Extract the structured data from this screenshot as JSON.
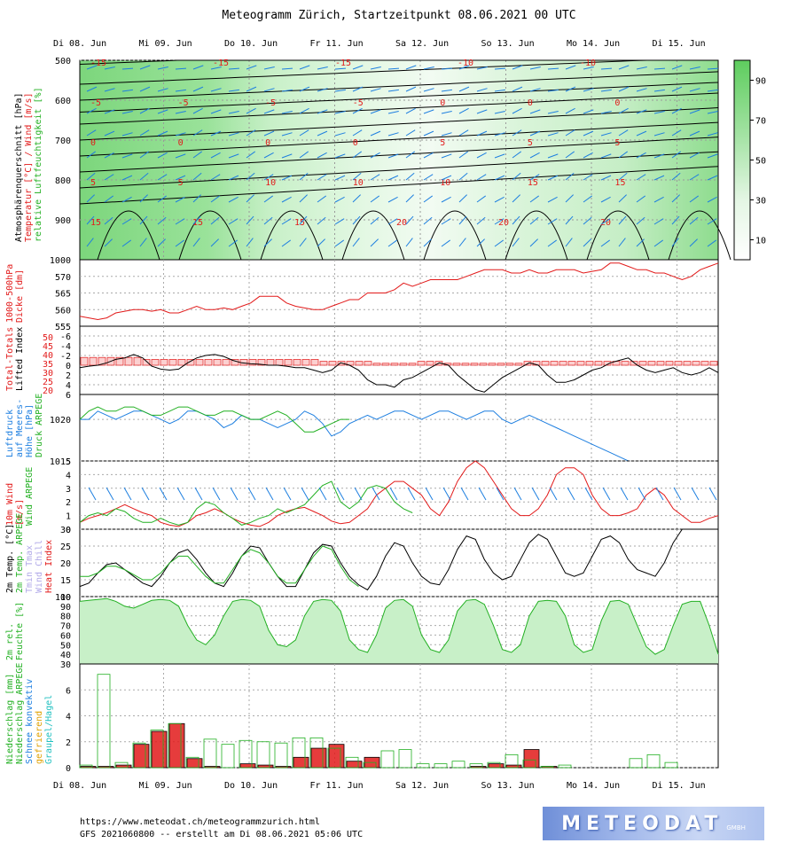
{
  "title": "Meteogramm Zürich, Startzeitpunkt 08.06.2021 00 UTC",
  "footer": {
    "url": "https://www.meteodat.ch/meteogrammzurich.html",
    "run": "GFS 2021060800 -- erstellt am Di 08.06.2021 05:06 UTC"
  },
  "logo": {
    "text": "METEODAT",
    "sub": "GMBH"
  },
  "colors": {
    "red": "#e21a1a",
    "blue": "#1e7fe0",
    "green": "#22b022",
    "black": "#000000",
    "lightgreen": "#c8f0c8",
    "pink": "#e8a0a0",
    "orange": "#e0a000",
    "cyan": "#20c0c0",
    "lilac": "#b0a8e8"
  },
  "chart_data": {
    "type": "line",
    "x_ticks": [
      "Di 08. Jun",
      "Mi 09. Jun",
      "Do 10. Jun",
      "Fr 11. Jun",
      "Sa 12. Jun",
      "So 13. Jun",
      "Mo 14. Jun",
      "Di 15. Jun"
    ],
    "panels": [
      {
        "id": "cross-section",
        "type": "heatmap",
        "ylabel": [
          "Atmosphärenquerschnitt [hPa]",
          "Temperatur [°C] / Wind [m/s]",
          "relative Luftfeuchtigkeit [%]"
        ],
        "ylim": [
          1000,
          500
        ],
        "y_ticks": [
          "500",
          "600",
          "700",
          "800",
          "900",
          "1000"
        ],
        "colorbar_ticks": [
          "90",
          "70",
          "50",
          "30",
          "10"
        ],
        "temperature_labels_hPa": {
          "500": [
            "-15",
            "-15",
            "-15",
            "-10",
            "-10"
          ],
          "600": [
            "-5",
            "-5",
            "-5",
            "-5",
            "0",
            "0",
            "0"
          ],
          "700": [
            "0",
            "0",
            "0",
            "0",
            "5",
            "5",
            "5"
          ],
          "800": [
            "5",
            "5",
            "10",
            "10",
            "10",
            "15",
            "15"
          ],
          "900": [
            "15",
            "15",
            "15",
            "20",
            "20",
            "20"
          ]
        }
      },
      {
        "id": "thickness",
        "ylabel": [
          "1000-500hPa",
          "Dicke [dm]"
        ],
        "ylim": [
          555,
          575
        ],
        "y_ticks": [
          "570",
          "565",
          "560",
          "555"
        ],
        "series": [
          {
            "color": "red",
            "values": [
              558,
              557.5,
              557,
              557.5,
              559,
              559.5,
              560,
              560,
              559.5,
              560,
              559,
              559,
              560,
              561,
              560,
              560,
              560.5,
              560,
              561,
              562,
              564,
              564,
              564,
              562,
              561,
              560.5,
              560,
              560,
              561,
              562,
              563,
              563,
              565,
              565,
              565,
              566,
              568,
              567,
              568,
              569,
              569,
              569,
              569,
              570,
              571,
              572,
              572,
              572,
              571,
              571,
              572,
              571,
              571,
              572,
              572,
              572,
              571,
              571.5,
              572,
              574,
              574,
              573,
              572,
              572,
              571,
              571,
              570,
              569,
              570,
              572,
              573,
              574
            ]
          }
        ]
      },
      {
        "id": "stability",
        "ylabel": [
          "Total-Totals",
          "Lifted Index"
        ],
        "ylim": [
          6,
          -8
        ],
        "y_ticks": [
          "-6",
          "-4",
          "-2",
          "0",
          "2",
          "4",
          "6"
        ],
        "tt_ticks": [
          "50",
          "45",
          "40",
          "35",
          "30",
          "25",
          "20"
        ],
        "series": [
          {
            "name": "Lifted Index",
            "color": "black",
            "values": [
              0.5,
              0.2,
              0,
              -0.5,
              -1.2,
              -1.5,
              -2.2,
              -1.5,
              0.2,
              0.8,
              1,
              0.8,
              -0.5,
              -1.5,
              -2,
              -2.2,
              -1.8,
              -1,
              -0.5,
              -0.3,
              -0.2,
              0,
              0,
              0.2,
              0.5,
              0.5,
              1,
              1.5,
              1,
              -0.5,
              0,
              1,
              3,
              4,
              4,
              4.5,
              3,
              2.5,
              1.5,
              0.5,
              -0.5,
              0,
              2,
              3.5,
              5,
              5.5,
              4,
              2.5,
              1.5,
              0.5,
              -0.5,
              0,
              2,
              3.5,
              3.5,
              3,
              2,
              1,
              0.5,
              -0.5,
              -1,
              -1.5,
              0,
              1,
              1.5,
              1,
              0.5,
              1.5,
              2,
              1.5,
              0.5,
              1.5
            ]
          },
          {
            "name": "Total-Totals",
            "color": "pink",
            "values": [
              44,
              44,
              44,
              44,
              44,
              44,
              44,
              43,
              43,
              43,
              43,
              43,
              43,
              43,
              43,
              43,
              43,
              43,
              43,
              43,
              43,
              43,
              43,
              43,
              43,
              43,
              43,
              42,
              42,
              42,
              42,
              42,
              42,
              41,
              41,
              41,
              41,
              41,
              42,
              42,
              42,
              41,
              41,
              41,
              41,
              41,
              41,
              41,
              41,
              41,
              42,
              42,
              42,
              42,
              42,
              42,
              42,
              42,
              42,
              42,
              42,
              42,
              42,
              42,
              42,
              42,
              42,
              42,
              42,
              42,
              42,
              42
            ]
          }
        ]
      },
      {
        "id": "pressure",
        "ylabel": [
          "Luftdruck",
          "auf Meeres-",
          "Höhe [hPa]",
          "Druck ARPEGE"
        ],
        "ylim": [
          1015,
          1023
        ],
        "y_ticks": [
          "1020",
          "1015"
        ],
        "series": [
          {
            "name": "GFS",
            "color": "blue",
            "values": [
              1020,
              1020,
              1021,
              1020.5,
              1020,
              1020.5,
              1021,
              1021,
              1020.5,
              1020,
              1019.5,
              1020,
              1021,
              1021,
              1020.5,
              1020,
              1019,
              1019.5,
              1020.5,
              1020,
              1020,
              1019.5,
              1019,
              1019.5,
              1020,
              1021,
              1020.5,
              1019.5,
              1018,
              1018.5,
              1019.5,
              1020,
              1020.5,
              1020,
              1020.5,
              1021,
              1021,
              1020.5,
              1020,
              1020.5,
              1021,
              1021,
              1020.5,
              1020,
              1020.5,
              1021,
              1021,
              1020,
              1019.5,
              1020,
              1020.5,
              1020,
              1019.5,
              1019,
              1018.5,
              1018,
              1017.5,
              1017,
              1016.5,
              1016,
              1015.5,
              1015,
              1015,
              1015,
              1015,
              1015,
              1015,
              1015,
              1015,
              1015,
              1015,
              1015
            ]
          },
          {
            "name": "ARPEGE",
            "color": "green",
            "values": [
              1020,
              1021,
              1021.5,
              1021,
              1021,
              1021.5,
              1021.5,
              1021,
              1020.5,
              1020.5,
              1021,
              1021.5,
              1021.5,
              1021,
              1020.5,
              1020.5,
              1021,
              1021,
              1020.5,
              1020,
              1020,
              1020.5,
              1021,
              1020.5,
              1019.5,
              1018.5,
              1018.5,
              1019,
              1019.5,
              1020,
              1020
            ]
          }
        ]
      },
      {
        "id": "wind10m",
        "ylabel": [
          "10m Wind",
          "[m/s]",
          "Wind ARPEGE"
        ],
        "ylim": [
          0,
          5
        ],
        "y_ticks": [
          "5",
          "4",
          "3",
          "2",
          "1",
          "0"
        ],
        "series": [
          {
            "name": "GFS",
            "color": "red",
            "values": [
              0.5,
              0.8,
              1,
              1.2,
              1.5,
              1.8,
              1.5,
              1.2,
              1,
              0.5,
              0.3,
              0.2,
              0.5,
              1,
              1.2,
              1.5,
              1.2,
              0.8,
              0.5,
              0.3,
              0.2,
              0.5,
              1,
              1.3,
              1.5,
              1.6,
              1.3,
              1,
              0.6,
              0.4,
              0.5,
              1,
              1.5,
              2.5,
              3,
              3.5,
              3.5,
              3,
              2.5,
              1.5,
              1,
              2,
              3.5,
              4.5,
              5,
              4.5,
              3.5,
              2.5,
              1.5,
              1,
              1,
              1.5,
              2.5,
              4,
              4.5,
              4.5,
              4,
              2.5,
              1.5,
              1,
              1,
              1.2,
              1.5,
              2.5,
              3,
              2.5,
              1.5,
              1,
              0.5,
              0.5,
              0.8,
              1
            ]
          },
          {
            "name": "ARPEGE",
            "color": "green",
            "values": [
              0.5,
              1,
              1.2,
              1,
              1.5,
              1.3,
              0.8,
              0.5,
              0.5,
              0.8,
              0.5,
              0.3,
              0.5,
              1.5,
              2,
              1.8,
              1.2,
              0.8,
              0.3,
              0.5,
              0.8,
              1,
              1.5,
              1.2,
              1.5,
              1.8,
              2.5,
              3.2,
              3.5,
              2,
              1.5,
              2,
              3,
              3.2,
              3,
              2,
              1.5,
              1.2
            ]
          }
        ]
      },
      {
        "id": "temperature2m",
        "ylabel": [
          "2m Temp. [°C]",
          "2m Temp. ARPEGE",
          "Tmin Tmax",
          "Wind Chill",
          "Heat Index"
        ],
        "ylim": [
          10,
          30
        ],
        "y_ticks": [
          "30",
          "25",
          "20",
          "15",
          "10"
        ],
        "series": [
          {
            "name": "GFS",
            "color": "black",
            "values": [
              13,
              14,
              17,
              19.5,
              20,
              18,
              16,
              14,
              13,
              16,
              20,
              23,
              24,
              21,
              17,
              14,
              13,
              17,
              22,
              25,
              24.5,
              20,
              16,
              13,
              13,
              18,
              23,
              25.5,
              25,
              20,
              16,
              13.5,
              12,
              16,
              22,
              26,
              25,
              20,
              16,
              14,
              13.5,
              18,
              24,
              28,
              27,
              21,
              17,
              15,
              16,
              21,
              26,
              28.5,
              27,
              22,
              17,
              16,
              17,
              22,
              27,
              28,
              26,
              21,
              18,
              17,
              16,
              20,
              26,
              30,
              30,
              30,
              30,
              30
            ]
          },
          {
            "name": "ARPEGE",
            "color": "green",
            "values": [
              16,
              16,
              17,
              19,
              19,
              18,
              16.5,
              15,
              15,
              17,
              20,
              22,
              22,
              19,
              16,
              14,
              14,
              18,
              22,
              24,
              23,
              20,
              16,
              14,
              14,
              18,
              22,
              25,
              24,
              19,
              15,
              13
            ]
          }
        ]
      },
      {
        "id": "humidity2m",
        "ylabel": [
          "2m rel.",
          "Feuchte [%]"
        ],
        "ylim": [
          30,
          100
        ],
        "y_ticks": [
          "100",
          "90",
          "80",
          "70",
          "60",
          "50",
          "40",
          "30"
        ],
        "series": [
          {
            "color": "green",
            "fill": "lightgreen",
            "values": [
              95,
              96,
              97,
              98,
              95,
              90,
              88,
              92,
              96,
              97,
              96,
              90,
              70,
              55,
              50,
              60,
              80,
              95,
              97,
              96,
              90,
              65,
              50,
              48,
              55,
              80,
              95,
              97,
              96,
              85,
              55,
              45,
              42,
              60,
              88,
              96,
              97,
              90,
              60,
              45,
              42,
              55,
              85,
              96,
              97,
              92,
              70,
              45,
              42,
              50,
              80,
              95,
              96,
              95,
              80,
              50,
              42,
              45,
              75,
              95,
              96,
              92,
              70,
              48,
              40,
              45,
              70,
              92,
              95,
              95,
              70,
              40
            ]
          }
        ]
      },
      {
        "id": "precipitation",
        "type": "bar",
        "ylabel": [
          "Niederschlag [mm]",
          "Niederschlag ARPEGE",
          "Schnee konvektiv",
          "gefrierend",
          "Graupel/Hagel"
        ],
        "ylim": [
          0,
          8
        ],
        "y_ticks": [
          "6",
          "4",
          "2",
          "0"
        ],
        "series": [
          {
            "name": "GFS",
            "color": "red",
            "values": [
              0.1,
              0.1,
              0.2,
              1.8,
              2.8,
              3.4,
              0.7,
              0.1,
              0,
              0.3,
              0.2,
              0.1,
              0.8,
              1.5,
              1.8,
              0.5,
              0.8,
              0,
              0,
              0,
              0,
              0,
              0.1,
              0.3,
              0.2,
              1.4,
              0.1,
              0,
              0,
              0,
              0,
              0,
              0,
              0,
              0,
              0,
              0
            ]
          },
          {
            "name": "ARPEGE",
            "color": "green",
            "values": [
              0.2,
              7.2,
              0.4,
              1.9,
              2.9,
              3.4,
              0.8,
              2.2,
              1.8,
              2.1,
              2.0,
              1.9,
              2.3,
              2.3,
              1.5,
              0.8,
              0.4,
              1.3,
              1.4,
              0.3,
              0.3,
              0.5,
              0.3,
              0.4,
              1.0,
              0.6,
              0.1,
              0.2,
              0,
              0,
              0,
              0.7,
              1.0,
              0.4,
              0,
              0
            ]
          }
        ]
      }
    ]
  }
}
